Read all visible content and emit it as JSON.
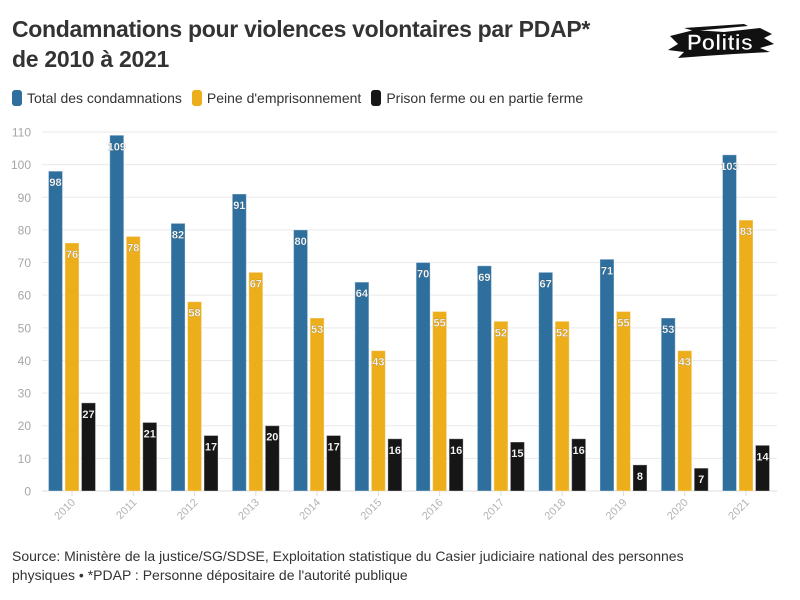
{
  "header": {
    "title_line1": "Condamnations pour violences volontaires par PDAP*",
    "title_line2": "de 2010 à 2021",
    "logo_text": "Politis"
  },
  "legend": [
    {
      "label": "Total des condamnations",
      "color": "#2e6f9e"
    },
    {
      "label": "Peine d'emprisonnement",
      "color": "#edae1c"
    },
    {
      "label": "Prison ferme ou en partie ferme",
      "color": "#161616"
    }
  ],
  "footer": {
    "source_line1": "Source: Ministère de la justice/SG/SDSE, Exploitation statistique du Casier judiciaire national des personnes",
    "source_line2": "physiques • *PDAP : Personne dépositaire de l'autorité publique"
  },
  "chart_data": {
    "type": "bar",
    "title": "Condamnations pour violences volontaires par PDAP* de 2010 à 2021",
    "xlabel": "",
    "ylabel": "",
    "ylim": [
      0,
      110
    ],
    "yticks": [
      0,
      10,
      20,
      30,
      40,
      50,
      60,
      70,
      80,
      90,
      100,
      110
    ],
    "grid": true,
    "legend_position": "top-left",
    "categories": [
      "2010",
      "2011",
      "2012",
      "2013",
      "2014",
      "2015",
      "2016",
      "2017",
      "2018",
      "2019",
      "2020",
      "2021"
    ],
    "series": [
      {
        "name": "Total des condamnations",
        "color": "#2e6f9e",
        "values": [
          98,
          109,
          82,
          91,
          80,
          64,
          70,
          69,
          67,
          71,
          53,
          103
        ]
      },
      {
        "name": "Peine d'emprisonnement",
        "color": "#edae1c",
        "values": [
          76,
          78,
          58,
          67,
          53,
          43,
          55,
          52,
          52,
          55,
          43,
          83
        ]
      },
      {
        "name": "Prison ferme ou en partie ferme",
        "color": "#161616",
        "values": [
          27,
          21,
          17,
          20,
          17,
          16,
          16,
          15,
          16,
          8,
          7,
          14
        ]
      }
    ]
  }
}
